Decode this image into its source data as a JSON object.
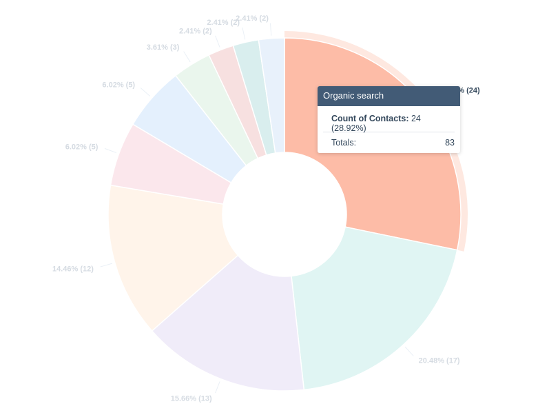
{
  "chart_data": {
    "type": "pie",
    "donut": true,
    "categories": [
      "Organic search",
      "",
      "",
      "",
      "",
      "",
      "",
      "",
      "",
      ""
    ],
    "values": [
      24,
      17,
      13,
      12,
      5,
      5,
      3,
      2,
      2,
      2
    ],
    "labels": [
      "28.92% (24)",
      "20.48% (17)",
      "15.66% (13)",
      "14.46% (12)",
      "6.02% (5)",
      "6.02% (5)",
      "3.61% (3)",
      "2.41% (2)",
      "2.41% (2)",
      "2.41% (2)"
    ],
    "colors": [
      "#fdbca7",
      "#e0f5f3",
      "#f0ecf9",
      "#fff4ea",
      "#fbe7ec",
      "#e4f0fd",
      "#eaf6ed",
      "#f7e0e0",
      "#d9eeee",
      "#e8f1fb"
    ],
    "highlight_index": 0
  },
  "tooltip": {
    "title": "Organic search",
    "metric_label": "Count of Contacts:",
    "metric_value": "24 (28.92%)",
    "total_label": "Totals:",
    "total_value": "83"
  }
}
